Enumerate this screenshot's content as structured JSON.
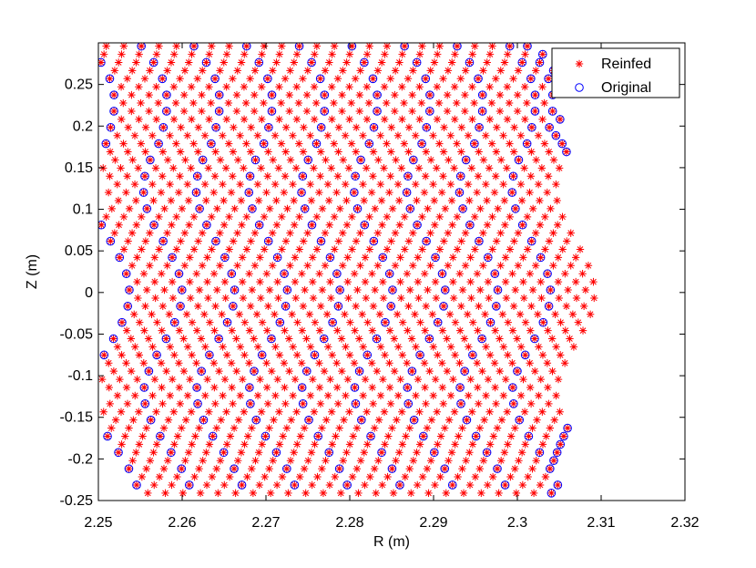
{
  "chart_data": {
    "type": "scatter",
    "xlabel": "R (m)",
    "ylabel": "Z (m)",
    "xlim": [
      2.25,
      2.32
    ],
    "ylim": [
      -0.25,
      0.3
    ],
    "x_ticks": [
      "2.25",
      "2.26",
      "2.27",
      "2.28",
      "2.29",
      "2.3",
      "2.31",
      "2.32"
    ],
    "y_ticks": [
      "-0.25",
      "-0.2",
      "-0.15",
      "-0.1",
      "-0.05",
      "0",
      "0.05",
      "0.1",
      "0.15",
      "0.2",
      "0.25"
    ],
    "grid": false,
    "legend_position": "top-right",
    "series": [
      {
        "name": "Reinfed",
        "marker": "asterisk",
        "color": "#ff0000"
      },
      {
        "name": "Original",
        "marker": "circle",
        "color": "#0000ff"
      }
    ],
    "grid_description": {
      "columns": 54,
      "r_left": 2.2514,
      "column_spacing": 0.001047,
      "z_spacing": 0.01953,
      "z_top": 0.296,
      "z_bottom": -0.243,
      "bulge_amplitude": 0.0023,
      "bulge_period_z": 0.25,
      "bulge_center_z": 0.0,
      "right_edge_max": 2.3095,
      "original_every_nth_column": 6
    }
  }
}
